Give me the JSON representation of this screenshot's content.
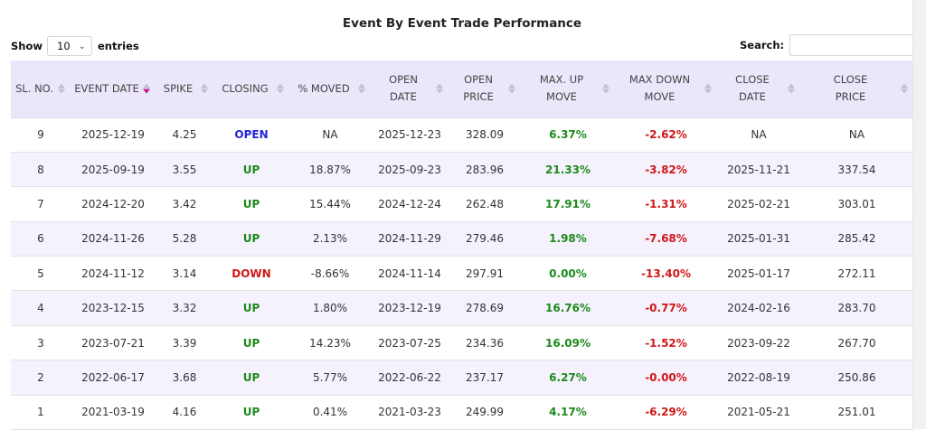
{
  "title": "Event By Event Trade Performance",
  "length_control": {
    "prefix": "Show",
    "value": "10",
    "suffix": "entries"
  },
  "search": {
    "label": "Search:",
    "value": ""
  },
  "columns": [
    {
      "l1": "SL. NO.",
      "l2": ""
    },
    {
      "l1": "EVENT DATE",
      "l2": ""
    },
    {
      "l1": "SPIKE",
      "l2": ""
    },
    {
      "l1": "CLOSING",
      "l2": ""
    },
    {
      "l1": "% MOVED",
      "l2": ""
    },
    {
      "l1": "OPEN",
      "l2": "DATE"
    },
    {
      "l1": "OPEN",
      "l2": "PRICE"
    },
    {
      "l1": "MAX. UP",
      "l2": "MOVE"
    },
    {
      "l1": "MAX DOWN",
      "l2": "MOVE"
    },
    {
      "l1": "CLOSE DATE",
      "l2": ""
    },
    {
      "l1": "CLOSE",
      "l2": "PRICE"
    }
  ],
  "sorted_column": "EVENT DATE",
  "status_colors": {
    "OPEN": "#2323d8",
    "UP": "#1c8a1c",
    "DOWN": "#d01818"
  },
  "rows": [
    [
      "9",
      "2025-12-19",
      "4.25",
      "OPEN",
      "NA",
      "2025-12-23",
      "328.09",
      "6.37%",
      "-2.62%",
      "NA",
      "NA"
    ],
    [
      "8",
      "2025-09-19",
      "3.55",
      "UP",
      "18.87%",
      "2025-09-23",
      "283.96",
      "21.33%",
      "-3.82%",
      "2025-11-21",
      "337.54"
    ],
    [
      "7",
      "2024-12-20",
      "3.42",
      "UP",
      "15.44%",
      "2024-12-24",
      "262.48",
      "17.91%",
      "-1.31%",
      "2025-02-21",
      "303.01"
    ],
    [
      "6",
      "2024-11-26",
      "5.28",
      "UP",
      "2.13%",
      "2024-11-29",
      "279.46",
      "1.98%",
      "-7.68%",
      "2025-01-31",
      "285.42"
    ],
    [
      "5",
      "2024-11-12",
      "3.14",
      "DOWN",
      "-8.66%",
      "2024-11-14",
      "297.91",
      "0.00%",
      "-13.40%",
      "2025-01-17",
      "272.11"
    ],
    [
      "4",
      "2023-12-15",
      "3.32",
      "UP",
      "1.80%",
      "2023-12-19",
      "278.69",
      "16.76%",
      "-0.77%",
      "2024-02-16",
      "283.70"
    ],
    [
      "3",
      "2023-07-21",
      "3.39",
      "UP",
      "14.23%",
      "2023-07-25",
      "234.36",
      "16.09%",
      "-1.52%",
      "2023-09-22",
      "267.70"
    ],
    [
      "2",
      "2022-06-17",
      "3.68",
      "UP",
      "5.77%",
      "2022-06-22",
      "237.17",
      "6.27%",
      "-0.00%",
      "2022-08-19",
      "250.86"
    ],
    [
      "1",
      "2021-03-19",
      "4.16",
      "UP",
      "0.41%",
      "2021-03-23",
      "249.99",
      "4.17%",
      "-6.29%",
      "2021-05-21",
      "251.01"
    ]
  ]
}
